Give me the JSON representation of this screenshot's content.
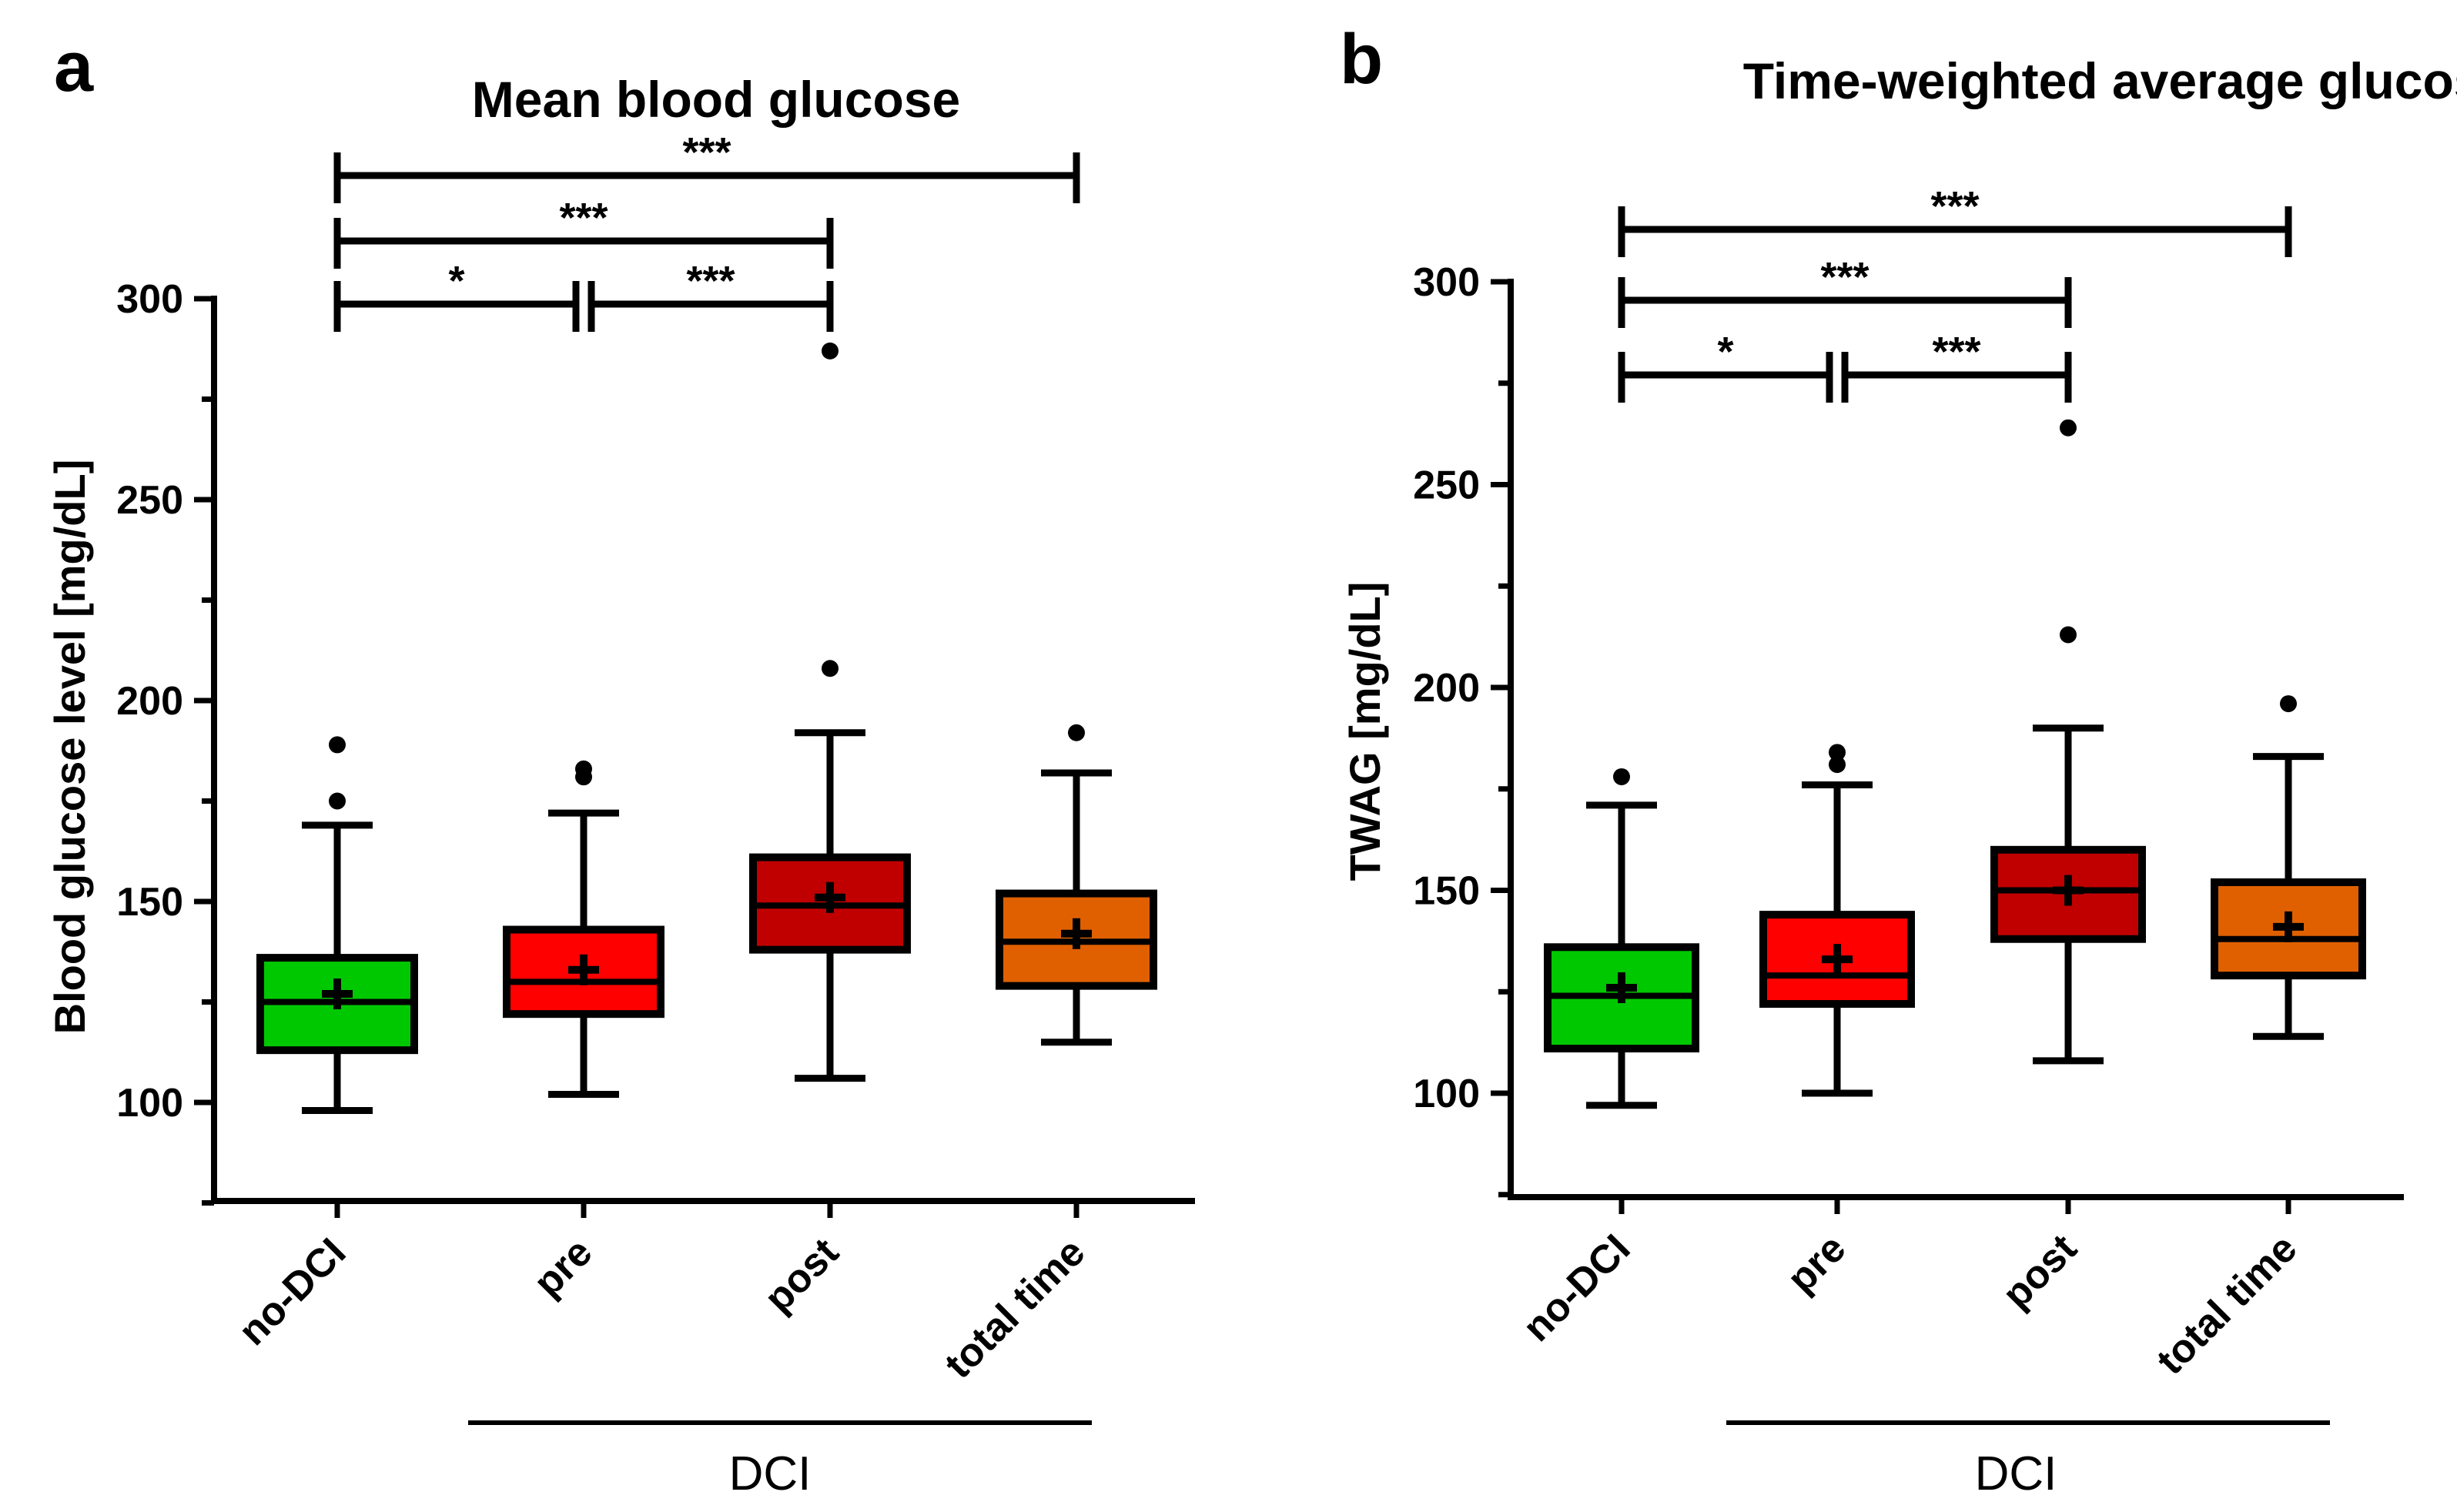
{
  "chart_data": [
    {
      "type": "box",
      "panel": "a",
      "title": "Mean blood glucose",
      "ylabel": "Blood glucose level [mg/dL]",
      "xlabel": "",
      "ylim": [
        75,
        305
      ],
      "yticks": [
        100,
        150,
        200,
        250,
        300
      ],
      "categories": [
        "no-DCI",
        "pre",
        "post",
        "total time"
      ],
      "group_label": "DCI",
      "group_members": [
        "pre",
        "post",
        "total time"
      ],
      "colors": [
        "#00c800",
        "#ff0000",
        "#c00000",
        "#e06000"
      ],
      "boxes": [
        {
          "category": "no-DCI",
          "whisker_low": 98,
          "q1": 113,
          "median": 125,
          "q3": 136,
          "whisker_high": 169,
          "mean": 127,
          "outliers": [
            175,
            189
          ]
        },
        {
          "category": "pre",
          "whisker_low": 102,
          "q1": 122,
          "median": 130,
          "q3": 143,
          "whisker_high": 172,
          "mean": 133,
          "outliers": [
            181,
            183
          ]
        },
        {
          "category": "post",
          "whisker_low": 106,
          "q1": 138,
          "median": 149,
          "q3": 161,
          "whisker_high": 192,
          "mean": 151,
          "outliers": [
            208,
            287
          ]
        },
        {
          "category": "total time",
          "whisker_low": 115,
          "q1": 129,
          "median": 140,
          "q3": 152,
          "whisker_high": 182,
          "mean": 142,
          "outliers": [
            192
          ]
        }
      ],
      "significance": [
        {
          "from": "no-DCI",
          "to": "pre",
          "label": "*",
          "level": 294
        },
        {
          "from": "pre",
          "to": "post",
          "label": "***",
          "level": 294
        },
        {
          "from": "no-DCI",
          "to": "post",
          "label": "***",
          "level": 310
        },
        {
          "from": "no-DCI",
          "to": "total time",
          "label": "***",
          "level": 327
        }
      ]
    },
    {
      "type": "box",
      "panel": "b",
      "title": "Time-weighted average glucose",
      "ylabel": "TWAG [mg/dL]",
      "xlabel": "",
      "ylim": [
        75,
        305
      ],
      "yticks": [
        100,
        150,
        200,
        250,
        300
      ],
      "categories": [
        "no-DCI",
        "pre",
        "post",
        "total time"
      ],
      "group_label": "DCI",
      "group_members": [
        "pre",
        "post",
        "total time"
      ],
      "colors": [
        "#00c800",
        "#ff0000",
        "#c00000",
        "#e06000"
      ],
      "boxes": [
        {
          "category": "no-DCI",
          "whisker_low": 97,
          "q1": 111,
          "median": 124,
          "q3": 136,
          "whisker_high": 171,
          "mean": 126,
          "outliers": [
            178
          ]
        },
        {
          "category": "pre",
          "whisker_low": 100,
          "q1": 122,
          "median": 129,
          "q3": 144,
          "whisker_high": 176,
          "mean": 133,
          "outliers": [
            181,
            184
          ]
        },
        {
          "category": "post",
          "whisker_low": 108,
          "q1": 138,
          "median": 150,
          "q3": 160,
          "whisker_high": 190,
          "mean": 150,
          "outliers": [
            213,
            264
          ]
        },
        {
          "category": "total time",
          "whisker_low": 114,
          "q1": 129,
          "median": 138,
          "q3": 152,
          "whisker_high": 183,
          "mean": 141,
          "outliers": [
            196
          ]
        }
      ],
      "significance": [
        {
          "from": "no-DCI",
          "to": "pre",
          "label": "*",
          "level": 277
        },
        {
          "from": "pre",
          "to": "post",
          "label": "***",
          "level": 277
        },
        {
          "from": "no-DCI",
          "to": "post",
          "label": "***",
          "level": 295
        },
        {
          "from": "no-DCI",
          "to": "total time",
          "label": "***",
          "level": 312
        }
      ]
    }
  ]
}
